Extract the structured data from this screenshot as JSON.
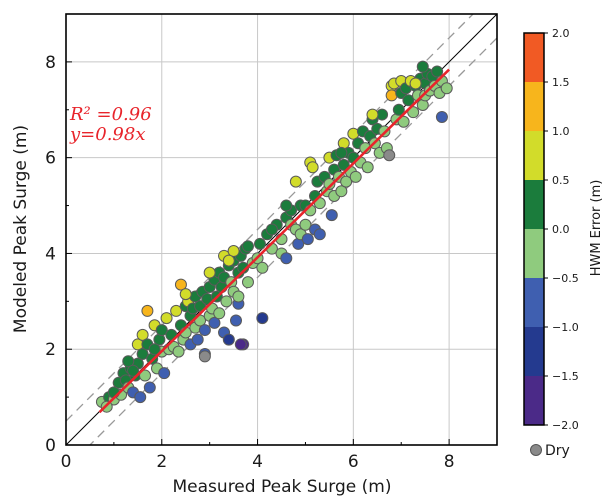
{
  "chart_data": {
    "type": "scatter",
    "title": "",
    "xlabel": "Measured Peak Surge (m)",
    "ylabel": "Modeled Peak Surge (m)",
    "xlim": [
      0,
      9
    ],
    "ylim": [
      0,
      9
    ],
    "x_ticks": [
      0,
      2,
      4,
      6,
      8
    ],
    "y_ticks": [
      0,
      2,
      4,
      6,
      8
    ],
    "grid": true,
    "annotations": {
      "r2_text": "R² =0.96",
      "fit_text": "y=0.98x"
    },
    "fit_line": {
      "slope": 0.98,
      "x_range": [
        0.7,
        8.0
      ],
      "color": "#e8242b"
    },
    "one_to_one_line": {
      "slope": 1.0,
      "color": "#000000"
    },
    "bounds_lines": {
      "offset": 0.5,
      "style": "dashed",
      "color": "#999999"
    },
    "colorbar": {
      "label": "HWM Error (m)",
      "ticks": [
        "2.0",
        "1.5",
        "1.0",
        "0.5",
        "0.0",
        "−0.5",
        "−1.0",
        "−1.5",
        "−2.0"
      ],
      "bins": [
        {
          "min": 1.5,
          "max": 2.0,
          "color": "#f15a24"
        },
        {
          "min": 1.0,
          "max": 1.5,
          "color": "#f7b51c"
        },
        {
          "min": 0.5,
          "max": 1.0,
          "color": "#d2dc2a"
        },
        {
          "min": 0.0,
          "max": 0.5,
          "color": "#1b7c3c"
        },
        {
          "min": -0.5,
          "max": 0.0,
          "color": "#8fcb7e"
        },
        {
          "min": -1.0,
          "max": -0.5,
          "color": "#3f5fb0"
        },
        {
          "min": -1.5,
          "max": -1.0,
          "color": "#243a8f"
        },
        {
          "min": -2.0,
          "max": -1.5,
          "color": "#4b2a88"
        }
      ]
    },
    "legend": [
      {
        "label": "Dry",
        "color": "#8a8a8a"
      }
    ],
    "points": [
      [
        0.75,
        0.9,
        -0.1
      ],
      [
        0.9,
        1.0,
        0.2
      ],
      [
        1.0,
        0.95,
        -0.3
      ],
      [
        1.1,
        1.3,
        0.3
      ],
      [
        1.15,
        1.05,
        -0.4
      ],
      [
        1.2,
        1.5,
        0.4
      ],
      [
        1.25,
        1.35,
        0.1
      ],
      [
        1.3,
        1.2,
        -0.2
      ],
      [
        1.35,
        1.6,
        0.3
      ],
      [
        1.4,
        1.1,
        -0.6
      ],
      [
        1.45,
        1.45,
        0.0
      ],
      [
        1.5,
        2.1,
        0.7
      ],
      [
        1.5,
        1.7,
        0.2
      ],
      [
        1.55,
        1.0,
        -0.8
      ],
      [
        1.6,
        2.3,
        0.8
      ],
      [
        1.6,
        1.9,
        0.3
      ],
      [
        1.65,
        1.45,
        -0.3
      ],
      [
        1.7,
        2.8,
        1.2
      ],
      [
        1.7,
        2.1,
        0.4
      ],
      [
        1.75,
        1.2,
        -0.7
      ],
      [
        1.8,
        1.8,
        0.05
      ],
      [
        1.85,
        2.5,
        0.7
      ],
      [
        1.9,
        1.6,
        -0.4
      ],
      [
        1.95,
        2.2,
        0.3
      ],
      [
        2.0,
        1.95,
        -0.1
      ],
      [
        2.0,
        2.4,
        0.4
      ],
      [
        2.05,
        1.5,
        -0.7
      ],
      [
        2.1,
        2.65,
        0.6
      ],
      [
        2.15,
        2.0,
        -0.2
      ],
      [
        2.2,
        2.3,
        0.2
      ],
      [
        2.25,
        2.05,
        -0.3
      ],
      [
        2.3,
        2.8,
        0.5
      ],
      [
        2.35,
        1.95,
        -0.5
      ],
      [
        2.4,
        2.5,
        0.2
      ],
      [
        2.4,
        3.35,
        1.1
      ],
      [
        2.45,
        2.2,
        -0.3
      ],
      [
        2.5,
        2.9,
        0.4
      ],
      [
        2.5,
        2.35,
        -0.2
      ],
      [
        2.55,
        3.0,
        0.6
      ],
      [
        2.6,
        2.1,
        -0.6
      ],
      [
        2.6,
        2.7,
        0.1
      ],
      [
        2.65,
        2.85,
        0.3
      ],
      [
        2.7,
        2.45,
        -0.3
      ],
      [
        2.7,
        3.1,
        0.4
      ],
      [
        2.75,
        2.2,
        -0.7
      ],
      [
        2.8,
        2.9,
        0.2
      ],
      [
        2.8,
        2.6,
        -0.2
      ],
      [
        2.85,
        3.2,
        0.4
      ],
      [
        2.9,
        1.9,
        -0.9
      ],
      [
        2.9,
        2.4,
        -0.6
      ],
      [
        2.95,
        3.05,
        0.1
      ],
      [
        3.0,
        3.3,
        0.3
      ],
      [
        3.0,
        2.7,
        -0.3
      ],
      [
        3.05,
        2.85,
        -0.2
      ],
      [
        3.1,
        3.45,
        0.4
      ],
      [
        3.1,
        2.55,
        -0.6
      ],
      [
        3.15,
        3.1,
        0.05
      ],
      [
        3.2,
        3.6,
        0.4
      ],
      [
        3.2,
        2.75,
        -0.5
      ],
      [
        3.25,
        3.3,
        0.1
      ],
      [
        3.3,
        2.35,
        -1.0
      ],
      [
        3.3,
        3.5,
        0.3
      ],
      [
        3.35,
        3.0,
        -0.4
      ],
      [
        3.4,
        3.75,
        0.4
      ],
      [
        3.4,
        2.2,
        -1.2
      ],
      [
        3.45,
        3.4,
        -0.05
      ],
      [
        3.5,
        3.2,
        -0.3
      ],
      [
        3.5,
        3.85,
        0.4
      ],
      [
        3.55,
        2.6,
        -1.0
      ],
      [
        3.6,
        3.6,
        0.0
      ],
      [
        3.6,
        2.95,
        -0.6
      ],
      [
        3.65,
        3.95,
        0.3
      ],
      [
        3.7,
        2.1,
        -1.6
      ],
      [
        3.7,
        3.7,
        0.02
      ],
      [
        3.75,
        4.1,
        0.4
      ],
      [
        3.8,
        3.4,
        -0.4
      ],
      [
        3.3,
        3.95,
        0.7
      ],
      [
        3.5,
        4.05,
        0.6
      ],
      [
        3.9,
        3.8,
        -0.1
      ],
      [
        3.6,
        3.1,
        -0.5
      ],
      [
        4.0,
        3.9,
        -0.1
      ],
      [
        4.05,
        4.2,
        0.2
      ],
      [
        4.1,
        3.7,
        -0.4
      ],
      [
        4.1,
        2.65,
        -1.4
      ],
      [
        4.2,
        4.4,
        0.2
      ],
      [
        4.3,
        4.1,
        -0.2
      ],
      [
        4.4,
        4.6,
        0.2
      ],
      [
        4.5,
        4.3,
        -0.2
      ],
      [
        4.5,
        4.0,
        -0.5
      ],
      [
        4.6,
        4.75,
        0.15
      ],
      [
        4.6,
        3.9,
        -0.7
      ],
      [
        4.7,
        4.6,
        -0.1
      ],
      [
        4.7,
        4.9,
        0.2
      ],
      [
        4.8,
        4.5,
        -0.3
      ],
      [
        4.8,
        5.5,
        0.9
      ],
      [
        4.85,
        4.2,
        -0.6
      ],
      [
        4.9,
        5.0,
        0.1
      ],
      [
        4.9,
        4.4,
        -0.5
      ],
      [
        5.0,
        4.6,
        -0.4
      ],
      [
        5.0,
        5.0,
        0.0
      ],
      [
        5.05,
        4.3,
        -0.8
      ],
      [
        5.1,
        4.9,
        -0.2
      ],
      [
        5.1,
        5.9,
        0.8
      ],
      [
        5.15,
        5.8,
        0.7
      ],
      [
        5.2,
        5.2,
        0.0
      ],
      [
        5.2,
        4.5,
        -0.7
      ],
      [
        5.25,
        5.5,
        0.2
      ],
      [
        5.3,
        4.4,
        -0.9
      ],
      [
        5.3,
        5.05,
        -0.25
      ],
      [
        5.4,
        5.6,
        0.2
      ],
      [
        5.45,
        5.3,
        -0.15
      ],
      [
        5.5,
        6.0,
        0.5
      ],
      [
        5.5,
        5.45,
        -0.05
      ],
      [
        5.55,
        4.8,
        -0.75
      ],
      [
        5.6,
        5.75,
        0.15
      ],
      [
        5.6,
        5.2,
        -0.4
      ],
      [
        5.65,
        6.05,
        0.4
      ],
      [
        5.7,
        5.6,
        -0.1
      ],
      [
        5.75,
        5.3,
        -0.45
      ],
      [
        5.8,
        6.3,
        0.5
      ],
      [
        5.8,
        5.85,
        0.05
      ],
      [
        5.85,
        5.5,
        -0.35
      ],
      [
        5.9,
        6.1,
        0.2
      ],
      [
        5.95,
        5.7,
        -0.25
      ],
      [
        6.0,
        6.5,
        0.5
      ],
      [
        6.0,
        6.0,
        0.0
      ],
      [
        6.05,
        5.6,
        -0.45
      ],
      [
        6.1,
        6.3,
        0.2
      ],
      [
        6.15,
        5.9,
        -0.25
      ],
      [
        6.2,
        6.55,
        0.35
      ],
      [
        6.25,
        6.2,
        -0.05
      ],
      [
        6.3,
        5.8,
        -0.5
      ],
      [
        6.35,
        6.45,
        0.1
      ],
      [
        6.4,
        6.8,
        0.4
      ],
      [
        6.45,
        6.3,
        -0.15
      ],
      [
        6.5,
        6.6,
        0.1
      ],
      [
        6.55,
        6.1,
        -0.45
      ],
      [
        6.6,
        6.9,
        0.3
      ],
      [
        6.65,
        6.55,
        -0.1
      ],
      [
        6.7,
        6.2,
        -0.5
      ],
      [
        6.75,
        6.05,
        -3.0
      ],
      [
        6.8,
        7.5,
        0.7
      ],
      [
        6.8,
        7.3,
        1.1
      ],
      [
        6.85,
        7.55,
        0.6
      ],
      [
        6.9,
        6.8,
        -0.1
      ],
      [
        6.95,
        7.0,
        0.05
      ],
      [
        7.0,
        7.35,
        0.35
      ],
      [
        7.0,
        7.6,
        0.9
      ],
      [
        7.05,
        6.75,
        -0.3
      ],
      [
        7.1,
        7.45,
        0.4
      ],
      [
        7.15,
        7.2,
        0.05
      ],
      [
        7.2,
        7.6,
        0.5
      ],
      [
        7.25,
        6.95,
        -0.3
      ],
      [
        7.3,
        7.5,
        0.2
      ],
      [
        7.35,
        7.3,
        -0.05
      ],
      [
        7.4,
        7.65,
        0.25
      ],
      [
        7.45,
        7.1,
        -0.35
      ],
      [
        7.5,
        7.55,
        0.05
      ],
      [
        7.5,
        7.3,
        -0.2
      ],
      [
        7.55,
        7.75,
        0.2
      ],
      [
        7.6,
        7.4,
        -0.2
      ],
      [
        7.65,
        7.7,
        0.05
      ],
      [
        7.7,
        7.5,
        -0.2
      ],
      [
        7.75,
        7.8,
        0.1
      ],
      [
        7.8,
        7.35,
        -0.45
      ],
      [
        7.85,
        7.6,
        -0.25
      ],
      [
        7.85,
        6.85,
        -1.0
      ],
      [
        7.95,
        7.45,
        -0.5
      ],
      [
        7.3,
        7.55,
        0.6
      ],
      [
        1.3,
        1.75,
        0.35
      ],
      [
        1.0,
        1.1,
        0.1
      ],
      [
        0.85,
        0.8,
        -0.1
      ],
      [
        1.4,
        1.55,
        0.15
      ],
      [
        1.85,
        2.0,
        0.15
      ],
      [
        2.9,
        1.85,
        -3.0
      ],
      [
        3.65,
        2.1,
        -1.7
      ],
      [
        2.5,
        3.15,
        0.8
      ],
      [
        3.4,
        3.85,
        0.5
      ],
      [
        3.0,
        3.6,
        0.6
      ],
      [
        3.8,
        4.15,
        0.4
      ],
      [
        4.3,
        4.5,
        0.2
      ],
      [
        4.6,
        5.0,
        0.35
      ],
      [
        5.75,
        6.1,
        0.35
      ],
      [
        6.4,
        6.9,
        0.5
      ],
      [
        7.45,
        7.9,
        0.45
      ]
    ]
  }
}
